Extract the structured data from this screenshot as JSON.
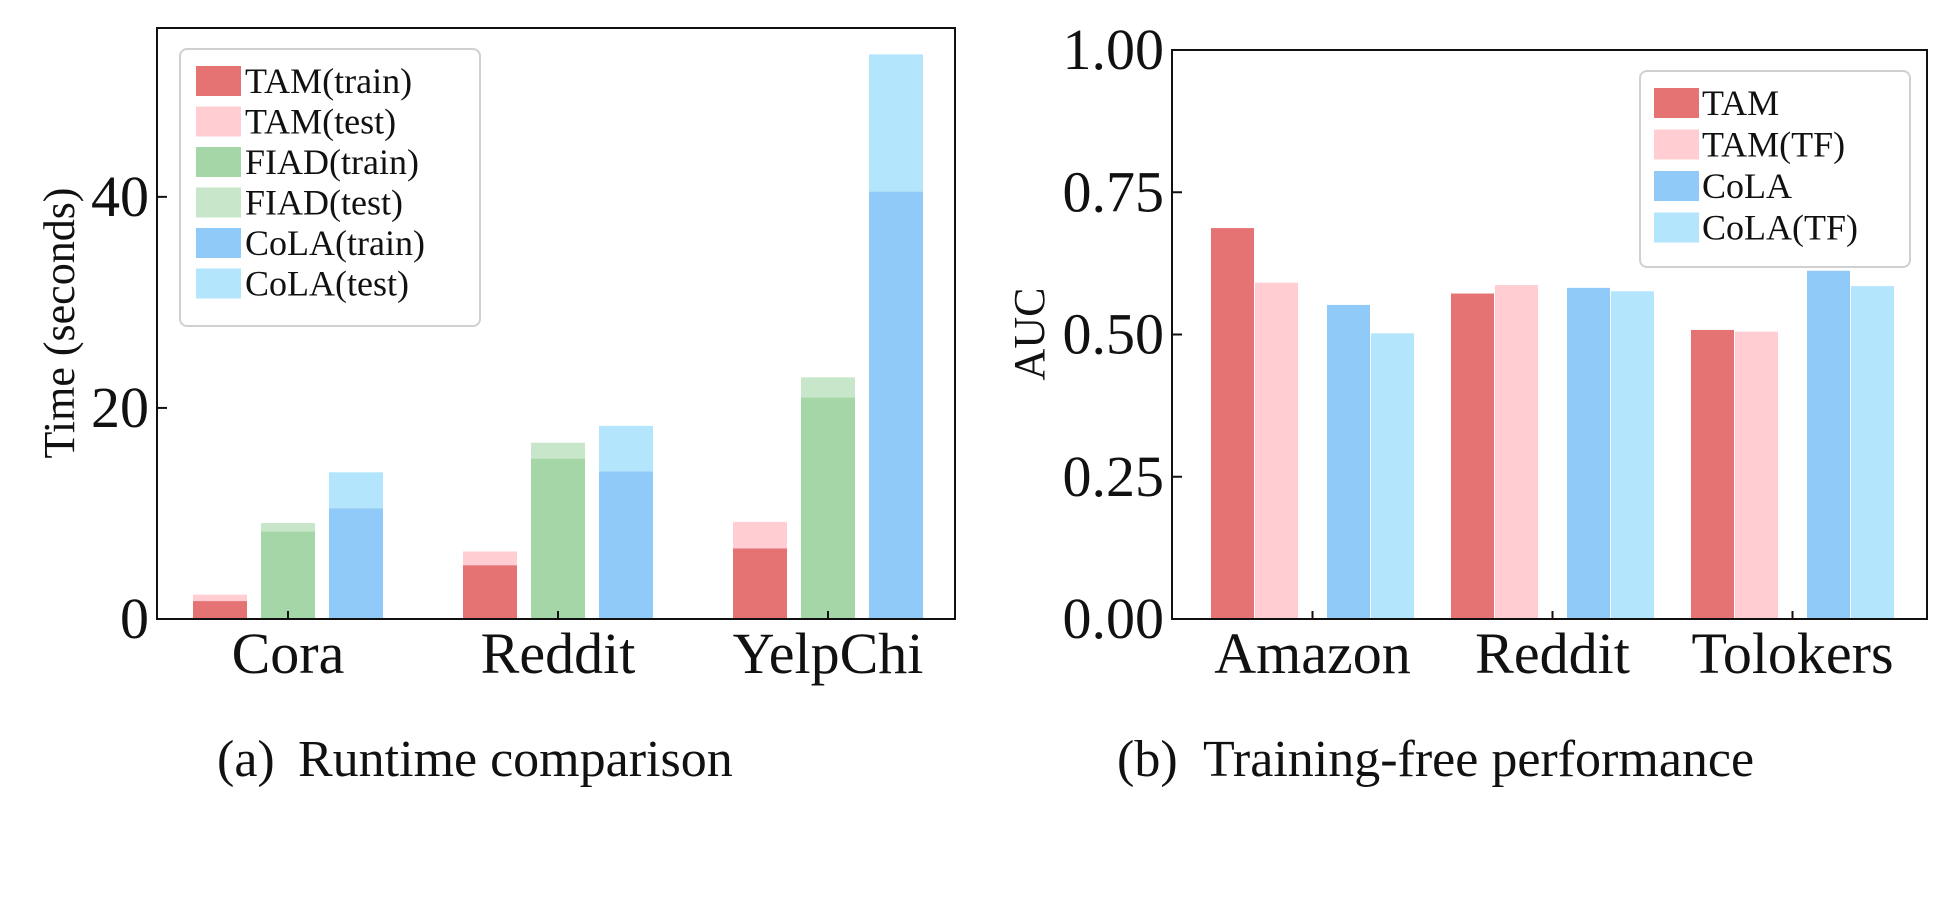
{
  "chart_data": [
    {
      "id": "a",
      "type": "bar",
      "stacked": true,
      "categories": [
        "Cora",
        "Reddit",
        "YelpChi"
      ],
      "ylabel": "Time (seconds)",
      "xlabel": "",
      "ylim": [
        0,
        56
      ],
      "yticks": [
        0,
        20,
        40
      ],
      "ytick_labels": [
        "0",
        "20",
        "40"
      ],
      "legend_position": "top-left",
      "methods": [
        {
          "name": "TAM",
          "train": [
            1.7,
            5.1,
            6.7
          ],
          "test": [
            0.6,
            1.3,
            2.5
          ],
          "train_label": "TAM(train)",
          "test_label": "TAM(test)",
          "train_color": "#e57373",
          "test_color": "#ffcdd2"
        },
        {
          "name": "FIAD",
          "train": [
            8.3,
            15.2,
            21.0
          ],
          "test": [
            0.8,
            1.5,
            1.9
          ],
          "train_label": "FIAD(train)",
          "test_label": "FIAD(test)",
          "train_color": "#a5d6a7",
          "test_color": "#c8e6c9"
        },
        {
          "name": "CoLA",
          "train": [
            10.5,
            14.0,
            40.5
          ],
          "test": [
            3.4,
            4.3,
            13.0
          ],
          "train_label": "CoLA(train)",
          "test_label": "CoLA(test)",
          "train_color": "#90caf9",
          "test_color": "#b3e5fc"
        }
      ],
      "caption_tag": "(a)",
      "caption_text": "Runtime comparison"
    },
    {
      "id": "b",
      "type": "bar",
      "categories": [
        "Amazon",
        "Reddit",
        "Tolokers"
      ],
      "ylabel": "AUC",
      "xlabel": "",
      "ylim": [
        0,
        1.0
      ],
      "yticks": [
        0,
        0.25,
        0.5,
        0.75,
        1.0
      ],
      "ytick_labels": [
        "0.00",
        "0.25",
        "0.50",
        "0.75",
        "1.00"
      ],
      "legend_position": "top-right",
      "series": [
        {
          "name": "TAM",
          "values": [
            0.687,
            0.572,
            0.508
          ],
          "color": "#e57373"
        },
        {
          "name": "TAM(TF)",
          "values": [
            0.591,
            0.587,
            0.505
          ],
          "color": "#ffcdd2"
        },
        {
          "name": "CoLA",
          "values": [
            0.552,
            0.582,
            0.612
          ],
          "color": "#90caf9"
        },
        {
          "name": "CoLA(TF)",
          "values": [
            0.502,
            0.576,
            0.585
          ],
          "color": "#b3e5fc"
        }
      ],
      "caption_tag": "(b)",
      "caption_text": "Training-free performance"
    }
  ]
}
